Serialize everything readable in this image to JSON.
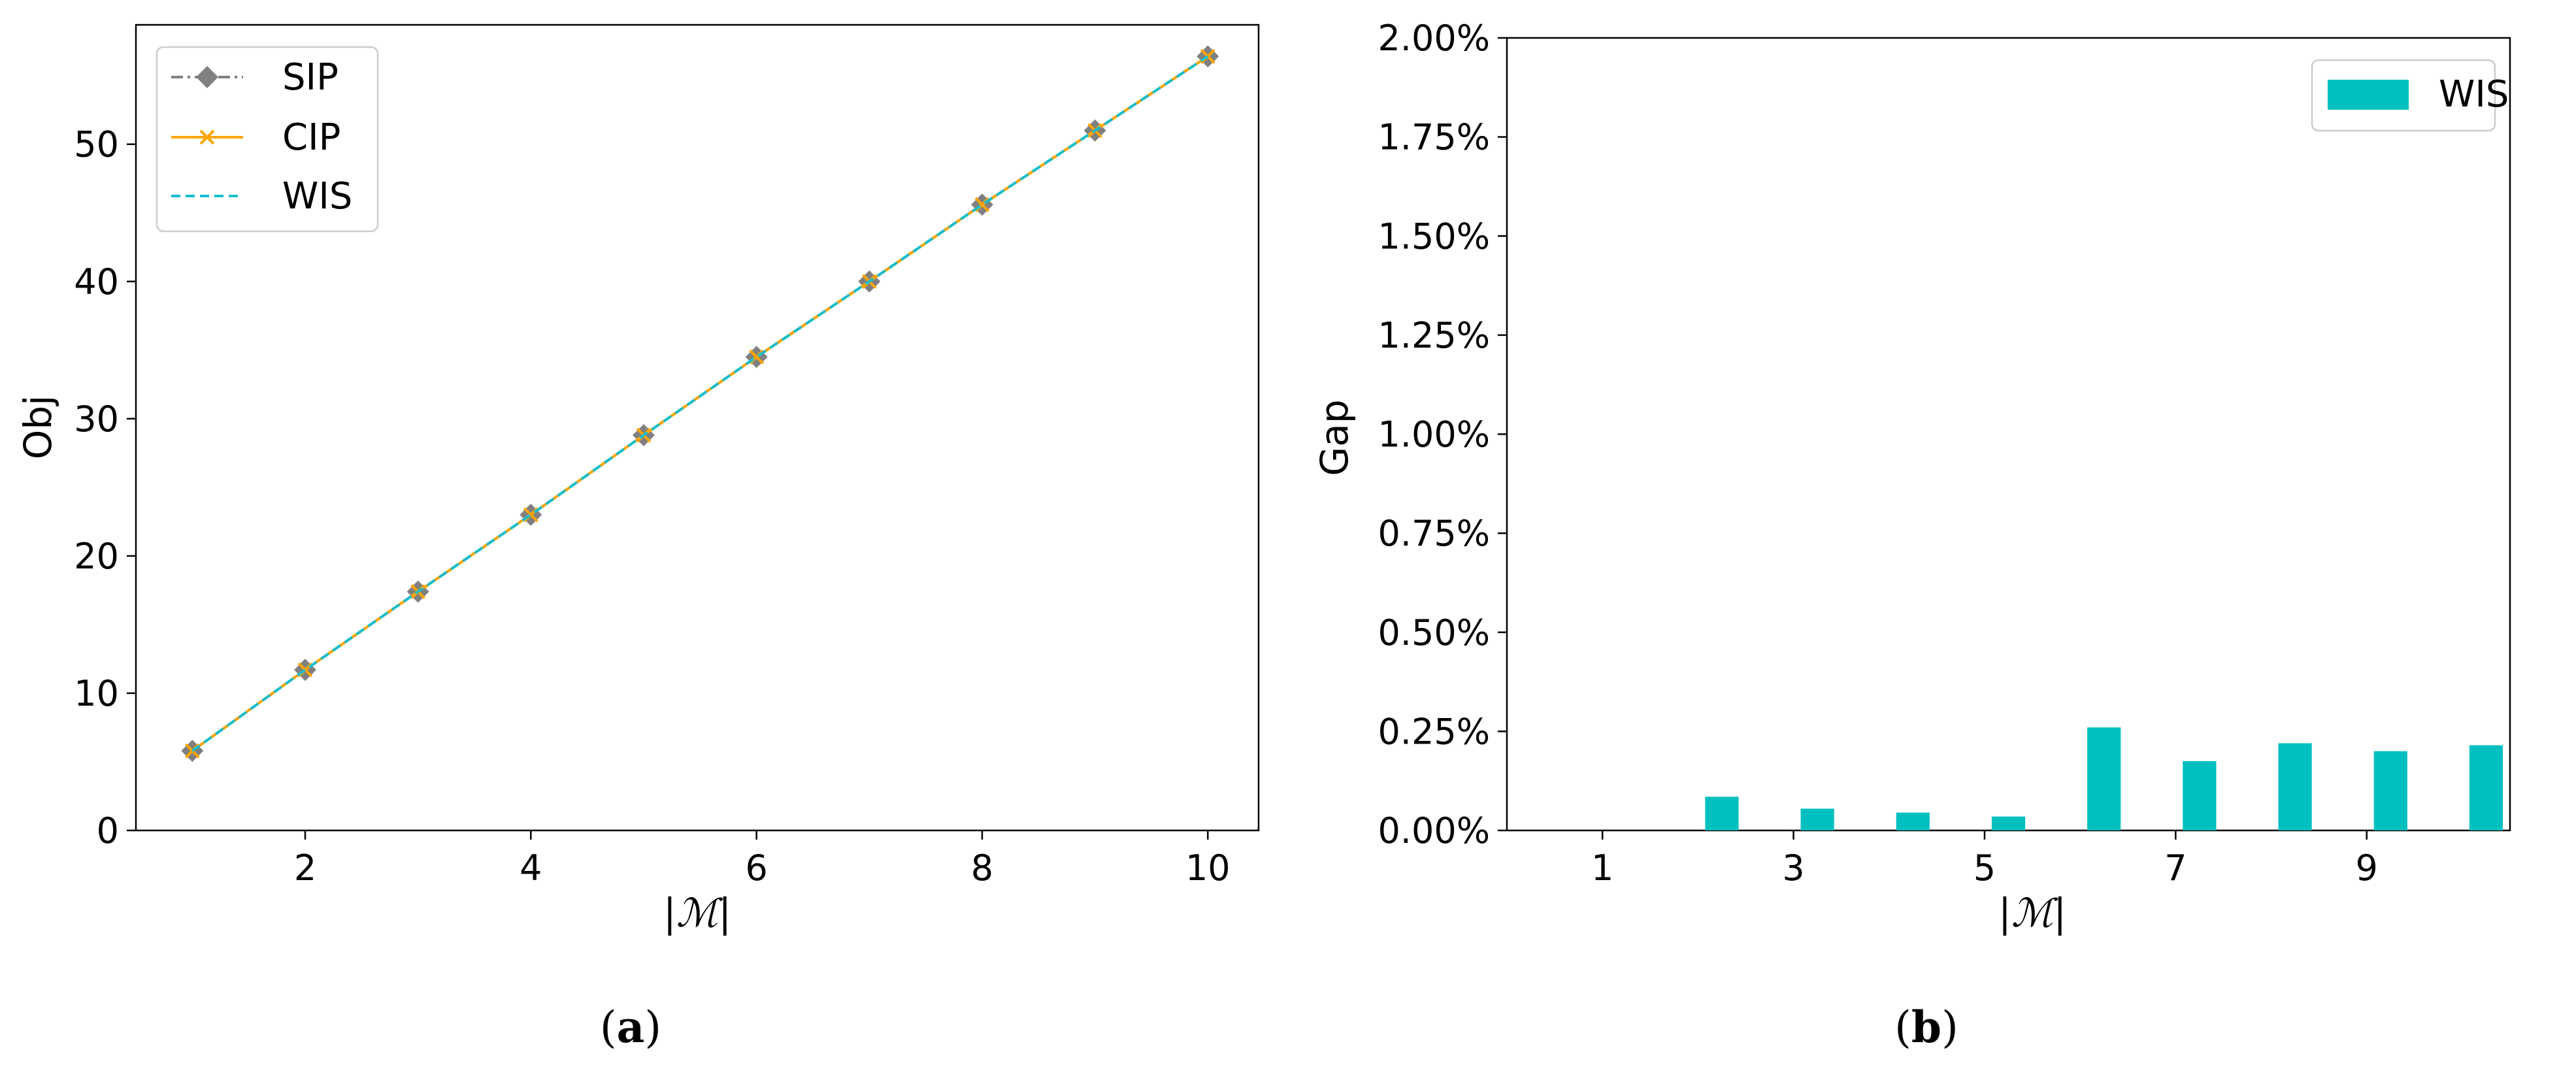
{
  "chart_data": [
    {
      "type": "line",
      "caption_open": "(",
      "caption_letter": "a",
      "caption_close": ")",
      "xlabel": "|ℳ|",
      "ylabel": "Obj",
      "xlim": [
        0.5,
        10.45
      ],
      "ylim": [
        0,
        58.7
      ],
      "xticks": [
        2,
        4,
        6,
        8,
        10
      ],
      "yticks": [
        0,
        10,
        20,
        30,
        40,
        50
      ],
      "x": [
        1,
        2,
        3,
        4,
        5,
        6,
        7,
        8,
        9,
        10
      ],
      "series": [
        {
          "name": "SIP",
          "color": "#808080",
          "marker": "diamond",
          "linestyle": "dashdot",
          "values": [
            5.8,
            11.7,
            17.4,
            23.0,
            28.8,
            34.5,
            40.0,
            45.6,
            51.0,
            56.4
          ]
        },
        {
          "name": "CIP",
          "color": "#ffa500",
          "marker": "x",
          "linestyle": "solid",
          "values": [
            5.8,
            11.7,
            17.4,
            23.0,
            28.8,
            34.5,
            40.0,
            45.6,
            51.0,
            56.4
          ]
        },
        {
          "name": "WIS",
          "color": "#17becf",
          "marker": "none",
          "linestyle": "dashed",
          "values": [
            5.8,
            11.7,
            17.4,
            23.0,
            28.8,
            34.5,
            40.0,
            45.6,
            51.0,
            56.4
          ]
        }
      ],
      "legend_position": "top-left",
      "grid": false
    },
    {
      "type": "bar",
      "caption_open": "(",
      "caption_letter": "b",
      "caption_close": ")",
      "xlabel": "|ℳ|",
      "ylabel": "Gap",
      "xlim": [
        0.0,
        10.5
      ],
      "ylim": [
        0,
        2.0
      ],
      "xticks": [
        1,
        3,
        5,
        7,
        9
      ],
      "ytick_values": [
        0,
        0.25,
        0.5,
        0.75,
        1.0,
        1.25,
        1.5,
        1.75,
        2.0
      ],
      "ytick_labels": [
        "0.00%",
        "0.25%",
        "0.50%",
        "0.75%",
        "1.00%",
        "1.25%",
        "1.50%",
        "1.75%",
        "2.00%"
      ],
      "categories": [
        1,
        2,
        3,
        4,
        5,
        6,
        7,
        8,
        9,
        10
      ],
      "series": [
        {
          "name": "WIS",
          "color": "#00bfbf",
          "values": [
            0.0,
            0.085,
            0.055,
            0.045,
            0.035,
            0.26,
            0.175,
            0.22,
            0.2,
            0.215
          ]
        }
      ],
      "legend_position": "top-right",
      "grid": false
    }
  ]
}
